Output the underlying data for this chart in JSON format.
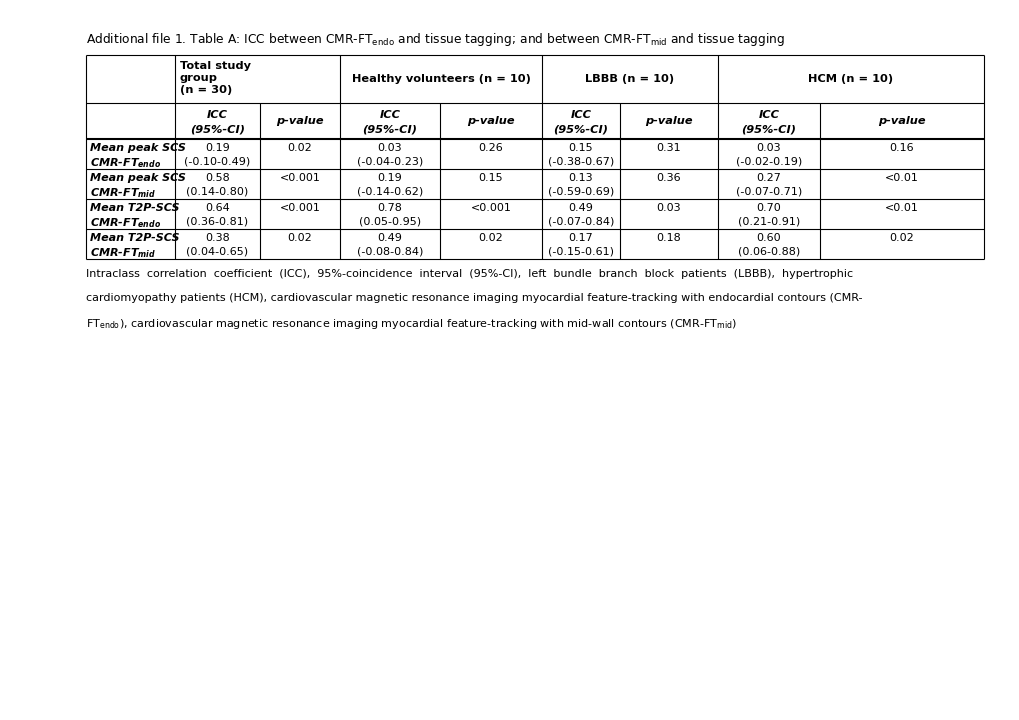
{
  "title": "Additional file 1. Table A: ICC between CMR-FT",
  "title_sub1": "endo",
  "title_mid": " and tissue tagging; and between CMR-FT",
  "title_sub2": "mid",
  "title_end": " and tissue tagging",
  "rows": [
    {
      "label1": "Mean peak SCS",
      "label2": "CMR-FT",
      "label_sub": "endo",
      "total_icc": "0.19",
      "total_ci": "(-0.10-0.49)",
      "total_p": "0.02",
      "hv_icc": "0.03",
      "hv_ci": "(-0.04-0.23)",
      "hv_p": "0.26",
      "lbbb_icc": "0.15",
      "lbbb_ci": "(-0.38-0.67)",
      "lbbb_p": "0.31",
      "hcm_icc": "0.03",
      "hcm_ci": "(-0.02-0.19)",
      "hcm_p": "0.16"
    },
    {
      "label1": "Mean peak SCS",
      "label2": "CMR-FT",
      "label_sub": "mid",
      "total_icc": "0.58",
      "total_ci": "(0.14-0.80)",
      "total_p": "<0.001",
      "hv_icc": "0.19",
      "hv_ci": "(-0.14-0.62)",
      "hv_p": "0.15",
      "lbbb_icc": "0.13",
      "lbbb_ci": "(-0.59-0.69)",
      "lbbb_p": "0.36",
      "hcm_icc": "0.27",
      "hcm_ci": "(-0.07-0.71)",
      "hcm_p": "<0.01"
    },
    {
      "label1": "Mean T2P-SCS",
      "label2": "CMR-FT",
      "label_sub": "endo",
      "total_icc": "0.64",
      "total_ci": "(0.36-0.81)",
      "total_p": "<0.001",
      "hv_icc": "0.78",
      "hv_ci": "(0.05-0.95)",
      "hv_p": "<0.001",
      "lbbb_icc": "0.49",
      "lbbb_ci": "(-0.07-0.84)",
      "lbbb_p": "0.03",
      "hcm_icc": "0.70",
      "hcm_ci": "(0.21-0.91)",
      "hcm_p": "<0.01"
    },
    {
      "label1": "Mean T2P-SCS",
      "label2": "CMR-FT",
      "label_sub": "mid",
      "total_icc": "0.38",
      "total_ci": "(0.04-0.65)",
      "total_p": "0.02",
      "hv_icc": "0.49",
      "hv_ci": "(-0.08-0.84)",
      "hv_p": "0.02",
      "lbbb_icc": "0.17",
      "lbbb_ci": "(-0.15-0.61)",
      "lbbb_p": "0.18",
      "hcm_icc": "0.60",
      "hcm_ci": "(0.06-0.88)",
      "hcm_p": "0.02"
    }
  ],
  "footnote1": "Intraclass  correlation  coefficient  (ICC),  95%-coincidence  interval  (95%-CI),  left  bundle  branch  block  patients  (LBBB),  hypertrophic",
  "footnote2": "cardiomyopathy patients (HCM), cardiovascular magnetic resonance imaging myocardial feature-tracking with endocardial contours (CMR-",
  "footnote3a": "FT",
  "footnote3_sub1": "endo",
  "footnote3b": "), cardiovascular magnetic resonance imaging myocardial feature-tracking with mid-wall contours (CMR-FT",
  "footnote3_sub2": "mid",
  "footnote3c": ")",
  "bg": "#ffffff",
  "fg": "#000000",
  "fs_title": 8.8,
  "fs_header": 8.2,
  "fs_body": 8.0,
  "fs_foot": 8.0
}
